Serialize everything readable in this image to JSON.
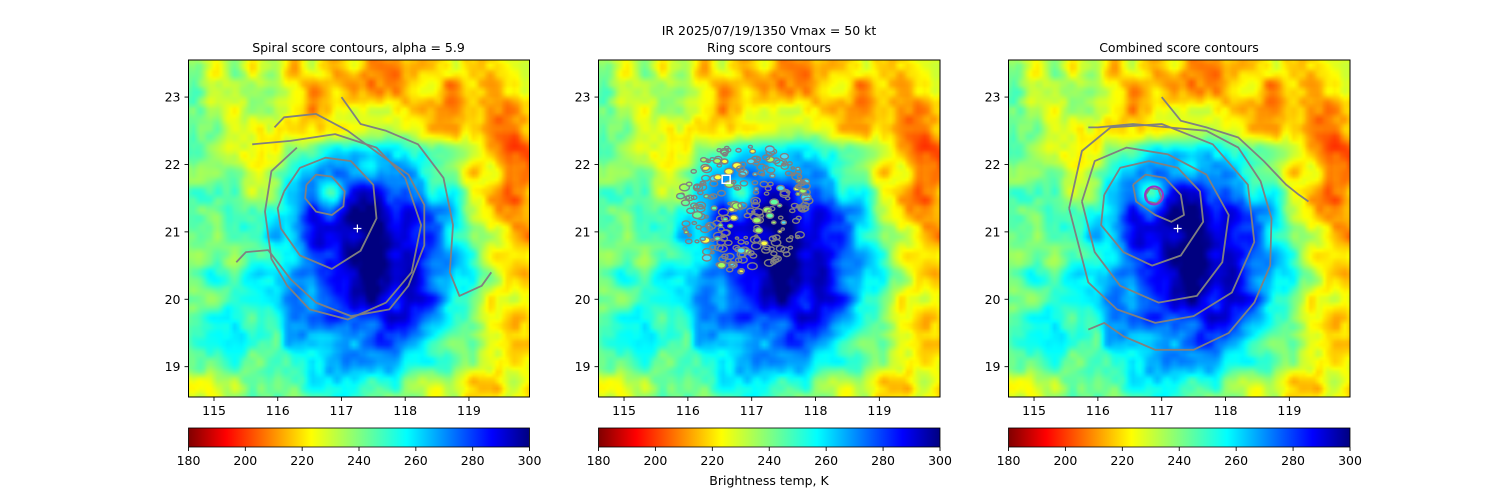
{
  "figure": {
    "suptitle_line1": "IR  2025/07/19/1350    Vmax = 50 kt",
    "colorbar_label": "Brightness temp, K",
    "colormap": "jet"
  },
  "chart_data": [
    {
      "type": "heatmap",
      "title": "Spiral score contours, alpha =  5.9",
      "xlim": [
        114.6,
        119.95
      ],
      "ylim": [
        18.55,
        23.55
      ],
      "xticks": [
        115,
        116,
        117,
        118,
        119
      ],
      "yticks": [
        19,
        20,
        21,
        22,
        23
      ],
      "colorbar": {
        "vmin": 180,
        "vmax": 300,
        "ticks": [
          180,
          200,
          220,
          240,
          260,
          280,
          300
        ]
      },
      "center_marker": {
        "x": 117.25,
        "y": 21.05,
        "symbol": "+",
        "color": "#ffffff"
      },
      "contour_color": "#808080",
      "contours": [
        [
          [
            116.45,
            21.7
          ],
          [
            116.6,
            21.85
          ],
          [
            116.85,
            21.82
          ],
          [
            117.05,
            21.6
          ],
          [
            117.03,
            21.38
          ],
          [
            116.85,
            21.25
          ],
          [
            116.6,
            21.3
          ],
          [
            116.43,
            21.5
          ],
          [
            116.45,
            21.7
          ]
        ],
        [
          [
            116.1,
            21.6
          ],
          [
            116.35,
            21.95
          ],
          [
            116.75,
            22.1
          ],
          [
            117.15,
            22.05
          ],
          [
            117.5,
            21.7
          ],
          [
            117.55,
            21.2
          ],
          [
            117.3,
            20.72
          ],
          [
            116.85,
            20.45
          ],
          [
            116.35,
            20.65
          ],
          [
            116.05,
            21.05
          ],
          [
            116.0,
            21.35
          ],
          [
            116.1,
            21.6
          ]
        ],
        [
          [
            115.6,
            22.3
          ],
          [
            116.2,
            22.35
          ],
          [
            116.9,
            22.45
          ],
          [
            117.55,
            22.25
          ],
          [
            118.0,
            21.8
          ],
          [
            118.25,
            21.1
          ],
          [
            118.1,
            20.4
          ],
          [
            117.7,
            19.95
          ],
          [
            117.1,
            19.7
          ],
          [
            116.5,
            19.85
          ],
          [
            116.15,
            20.2
          ],
          [
            115.9,
            20.6
          ],
          [
            115.8,
            21.3
          ],
          [
            115.9,
            21.9
          ],
          [
            116.3,
            22.25
          ]
        ],
        [
          [
            115.35,
            20.55
          ],
          [
            115.5,
            20.7
          ],
          [
            115.85,
            20.73
          ],
          [
            116.2,
            20.3
          ],
          [
            116.6,
            19.95
          ],
          [
            117.15,
            19.75
          ],
          [
            117.75,
            19.85
          ],
          [
            118.05,
            20.2
          ],
          [
            118.3,
            20.8
          ],
          [
            118.3,
            21.4
          ],
          [
            118.05,
            21.85
          ],
          [
            117.6,
            22.15
          ],
          [
            117.1,
            22.5
          ],
          [
            116.6,
            22.75
          ],
          [
            116.1,
            22.7
          ],
          [
            115.95,
            22.55
          ]
        ],
        [
          [
            117.0,
            23.0
          ],
          [
            117.3,
            22.6
          ],
          [
            117.7,
            22.5
          ],
          [
            118.2,
            22.3
          ],
          [
            118.6,
            21.8
          ],
          [
            118.75,
            21.1
          ],
          [
            118.7,
            20.4
          ],
          [
            118.85,
            20.05
          ],
          [
            119.2,
            20.2
          ],
          [
            119.35,
            20.4
          ]
        ]
      ]
    },
    {
      "type": "heatmap",
      "title": "Ring score contours",
      "xlim": [
        114.6,
        119.95
      ],
      "ylim": [
        18.55,
        23.55
      ],
      "xticks": [
        115,
        116,
        117,
        118,
        119
      ],
      "yticks": [
        19,
        20,
        21,
        22,
        23
      ],
      "colorbar": {
        "vmin": 180,
        "vmax": 300,
        "ticks": [
          180,
          200,
          220,
          240,
          260,
          280,
          300
        ]
      },
      "center_marker": {
        "x": 116.6,
        "y": 21.78,
        "symbol": "square",
        "color": "#ffffff"
      },
      "contour_color": "#808080",
      "contours": []
    },
    {
      "type": "heatmap",
      "title": "Combined score contours",
      "xlim": [
        114.6,
        119.95
      ],
      "ylim": [
        18.55,
        23.55
      ],
      "xticks": [
        115,
        116,
        117,
        118,
        119
      ],
      "yticks": [
        19,
        20,
        21,
        22,
        23
      ],
      "colorbar": {
        "vmin": 180,
        "vmax": 300,
        "ticks": [
          180,
          200,
          220,
          240,
          260,
          280,
          300
        ]
      },
      "center_marker": {
        "x": 117.25,
        "y": 21.05,
        "symbol": "+",
        "color": "#ffffff"
      },
      "highlight_circle": {
        "x": 116.88,
        "y": 21.54,
        "color": "#9b30c8"
      },
      "contour_color": "#808080",
      "contours": [
        [
          [
            116.75,
            21.55
          ],
          [
            116.82,
            21.65
          ],
          [
            116.95,
            21.63
          ],
          [
            117.0,
            21.5
          ],
          [
            116.92,
            21.42
          ],
          [
            116.78,
            21.45
          ],
          [
            116.75,
            21.55
          ]
        ],
        [
          [
            116.55,
            21.7
          ],
          [
            116.75,
            21.85
          ],
          [
            117.05,
            21.8
          ],
          [
            117.3,
            21.55
          ],
          [
            117.35,
            21.25
          ],
          [
            117.15,
            21.15
          ],
          [
            116.9,
            21.25
          ],
          [
            116.6,
            21.45
          ],
          [
            116.55,
            21.7
          ]
        ],
        [
          [
            116.1,
            21.55
          ],
          [
            116.35,
            21.95
          ],
          [
            116.8,
            22.05
          ],
          [
            117.25,
            21.95
          ],
          [
            117.6,
            21.6
          ],
          [
            117.65,
            21.15
          ],
          [
            117.3,
            20.65
          ],
          [
            116.85,
            20.5
          ],
          [
            116.4,
            20.7
          ],
          [
            116.05,
            21.1
          ],
          [
            116.1,
            21.55
          ]
        ],
        [
          [
            115.75,
            21.45
          ],
          [
            115.95,
            22.05
          ],
          [
            116.45,
            22.25
          ],
          [
            117.1,
            22.15
          ],
          [
            117.7,
            21.85
          ],
          [
            118.05,
            21.25
          ],
          [
            117.95,
            20.55
          ],
          [
            117.55,
            20.05
          ],
          [
            116.95,
            19.95
          ],
          [
            116.35,
            20.2
          ],
          [
            115.95,
            20.7
          ],
          [
            115.75,
            21.45
          ]
        ],
        [
          [
            115.55,
            21.35
          ],
          [
            115.75,
            22.2
          ],
          [
            116.2,
            22.55
          ],
          [
            117.0,
            22.6
          ],
          [
            117.8,
            22.3
          ],
          [
            118.35,
            21.7
          ],
          [
            118.45,
            20.85
          ],
          [
            118.1,
            20.1
          ],
          [
            117.5,
            19.75
          ],
          [
            116.9,
            19.65
          ],
          [
            116.3,
            19.85
          ],
          [
            115.85,
            20.25
          ],
          [
            115.55,
            21.35
          ]
        ],
        [
          [
            115.85,
            19.55
          ],
          [
            116.1,
            19.65
          ],
          [
            116.4,
            19.45
          ],
          [
            116.9,
            19.25
          ],
          [
            117.5,
            19.25
          ],
          [
            118.05,
            19.5
          ],
          [
            118.45,
            19.95
          ],
          [
            118.7,
            20.5
          ],
          [
            118.72,
            21.2
          ],
          [
            118.55,
            21.75
          ],
          [
            118.2,
            22.25
          ],
          [
            117.7,
            22.5
          ],
          [
            117.1,
            22.55
          ],
          [
            116.55,
            22.6
          ],
          [
            116.0,
            22.55
          ],
          [
            115.85,
            22.55
          ]
        ],
        [
          [
            117.0,
            23.0
          ],
          [
            117.3,
            22.65
          ],
          [
            117.7,
            22.55
          ],
          [
            118.2,
            22.4
          ],
          [
            118.6,
            22.05
          ],
          [
            118.95,
            21.7
          ],
          [
            119.15,
            21.55
          ],
          [
            119.3,
            21.45
          ]
        ]
      ]
    }
  ]
}
